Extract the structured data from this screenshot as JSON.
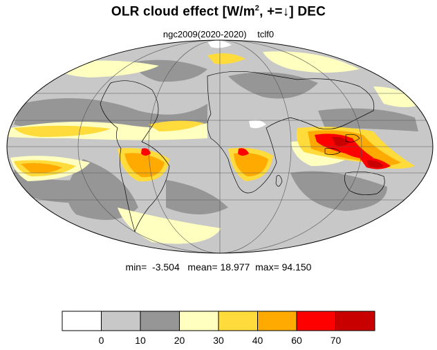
{
  "header": {
    "title_main": "OLR cloud effect [W/m",
    "title_sup": "2",
    "title_rest": ", +=↓]  DEC",
    "run": "ngc2009(2020-2020)",
    "var": "tclf0"
  },
  "stats": {
    "min_label": "min=",
    "min_value": "-3.504",
    "mean_label": "mean=",
    "mean_value": "18.977",
    "max_label": "max=",
    "max_value": "94.150"
  },
  "colorbar": {
    "levels": [
      "0",
      "10",
      "20",
      "30",
      "40",
      "60",
      "70"
    ],
    "colors": [
      "#ffffff",
      "#c8c8c8",
      "#969696",
      "#ffffc0",
      "#ffdc3c",
      "#ffaa00",
      "#ff0000",
      "#c80000"
    ]
  },
  "map": {
    "projection": "Mollweide",
    "grid": true,
    "ocean_base_color": "#c8c8c8"
  }
}
